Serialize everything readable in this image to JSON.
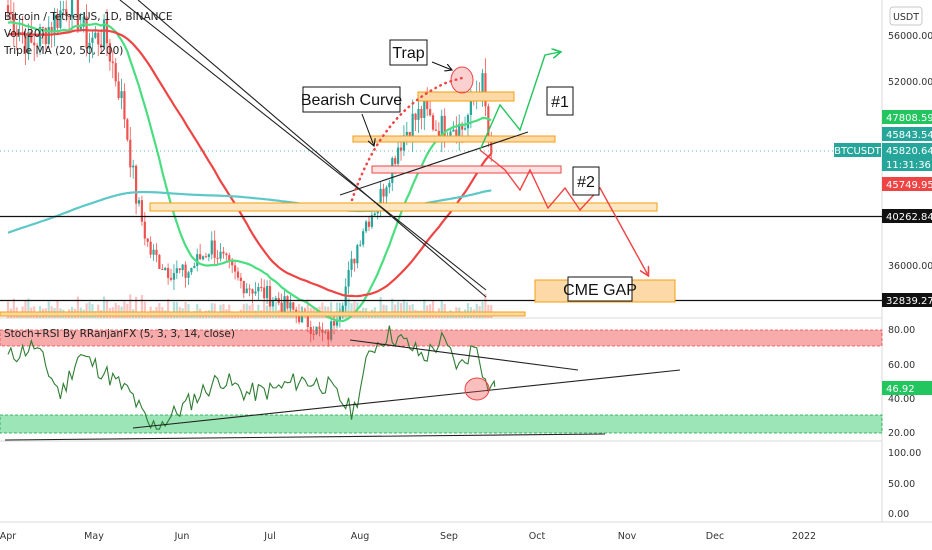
{
  "header": {
    "title": "Bitcoin / TetherUS, 1D, BINANCE",
    "vol": "Vol (20)",
    "ma": "Triple MA (20, 50, 200)",
    "stoch": "Stoch+RSI By RRanjanFX (5, 3, 3, 14, close)"
  },
  "currency": "USDT",
  "symbol_tag": "BTCUSDT",
  "price_axis": {
    "ticks": [
      "56000.00",
      "52000.00",
      "36000.00"
    ],
    "labels": [
      {
        "text": "47808.59",
        "color": "#22c55e",
        "text_color": "#ffffff"
      },
      {
        "text": "45843.54",
        "color": "#26a69a",
        "text_color": "#ffffff"
      },
      {
        "text": "45820.64",
        "color": "#26a69a",
        "text_color": "#ffffff"
      },
      {
        "text": "11:31:36",
        "color": "#26a69a",
        "text_color": "#ffffff"
      },
      {
        "text": "45749.95",
        "color": "#ef4444",
        "text_color": "#ffffff"
      },
      {
        "text": "40262.84",
        "color": "#111111",
        "text_color": "#ffffff"
      },
      {
        "text": "32839.27",
        "color": "#111111",
        "text_color": "#ffffff"
      }
    ]
  },
  "stoch_axis": {
    "ticks": [
      "80.00",
      "60.00",
      "40.00",
      "20.00"
    ],
    "value": "46.92"
  },
  "vol_axis": {
    "ticks": [
      "100.00",
      "50.00",
      "0.00"
    ]
  },
  "time_axis": [
    "Apr",
    "May",
    "Jun",
    "Jul",
    "Aug",
    "Sep",
    "Oct",
    "Nov",
    "Dec",
    "2022"
  ],
  "annotations": {
    "trap": "Trap",
    "bearish_curve": "Bearish Curve",
    "scenario_1": "#1",
    "scenario_2": "#2",
    "cme_gap": "CME GAP"
  },
  "chart_data": {
    "type": "candlestick",
    "symbol": "BTCUSDT",
    "interval": "1D",
    "exchange": "BINANCE",
    "ylim": [
      29500,
      58500
    ],
    "levels": [
      40262.84,
      32839.27
    ],
    "last_price": 45820.64,
    "sma_20_last": 45843.54,
    "sma_50_last": 47808.59,
    "sma_200_last": 45749.95,
    "close_path": {
      "months": [
        3.0,
        3.25,
        3.5,
        3.7,
        3.9,
        4.1,
        4.3,
        4.45,
        4.6,
        4.8,
        5.0,
        5.3,
        5.6,
        6.0,
        6.3,
        6.6,
        6.8,
        7.0,
        7.2,
        7.4,
        7.55,
        7.7,
        7.85,
        8.0,
        8.15,
        8.35,
        8.45
      ],
      "prices": [
        58000,
        55000,
        57000,
        59000,
        55500,
        56000,
        50000,
        42000,
        37500,
        36000,
        35500,
        38000,
        35000,
        33500,
        32000,
        30000,
        34000,
        39500,
        42000,
        46500,
        48500,
        49500,
        48000,
        48500,
        48000,
        52500,
        45820.64
      ]
    },
    "stoch_rsi": {
      "months": [
        3.0,
        3.3,
        3.6,
        3.8,
        4.1,
        4.4,
        4.6,
        4.8,
        5.1,
        5.4,
        5.7,
        6.0,
        6.3,
        6.6,
        6.9,
        7.1,
        7.3,
        7.5,
        7.7,
        7.9,
        8.1,
        8.3,
        8.4,
        8.5
      ],
      "values": [
        64,
        71,
        42,
        66,
        55,
        42,
        23,
        28,
        40,
        52,
        43,
        45,
        51,
        48,
        32,
        69,
        78,
        72,
        64,
        74,
        58,
        73,
        48,
        46.92
      ],
      "overbought": 80,
      "oversold": 20,
      "last": 46.92
    }
  }
}
